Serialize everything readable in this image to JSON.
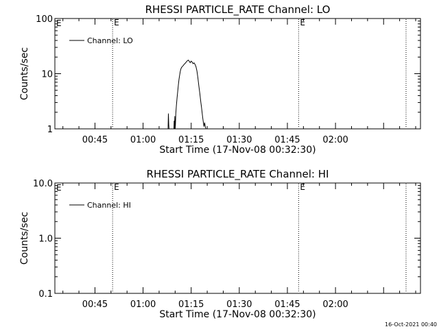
{
  "footer_timestamp": "16-Oct-2021 00:40",
  "chart_data": [
    {
      "type": "line",
      "title": "RHESSI PARTICLE_RATE Channel: LO",
      "xlabel": "Start Time (17-Nov-08 00:32:30)",
      "ylabel": "Counts/sec",
      "yscale": "log",
      "ylim": [
        1,
        100
      ],
      "yticks": [
        {
          "value": 1,
          "label": "1"
        },
        {
          "value": 10,
          "label": "10"
        },
        {
          "value": 100,
          "label": "100"
        }
      ],
      "xlim_minutes": [
        32.5,
        146.5
      ],
      "xticks": [
        {
          "minute": 45,
          "label": "00:45"
        },
        {
          "minute": 60,
          "label": "01:00"
        },
        {
          "minute": 75,
          "label": "01:15"
        },
        {
          "minute": 90,
          "label": "01:30"
        },
        {
          "minute": 105,
          "label": "01:45"
        },
        {
          "minute": 120,
          "label": "02:00"
        }
      ],
      "event_markers": [
        {
          "minute": 50.5,
          "label": "E"
        },
        {
          "minute": 108.5,
          "label": "E"
        },
        {
          "minute": 142.0,
          "label": ""
        }
      ],
      "legend": {
        "entries": [
          "Channel: LO"
        ],
        "location": "top-left"
      },
      "series": [
        {
          "name": "Channel: LO",
          "x": [
            67.8,
            67.9,
            68.0,
            68.1,
            69.6,
            69.7,
            69.8,
            69.9,
            70.0,
            70.1,
            70.2,
            70.4,
            70.6,
            70.8,
            71.0,
            71.2,
            71.4,
            71.6,
            71.8,
            72.0,
            72.3,
            72.6,
            72.9,
            73.2,
            73.5,
            73.8,
            74.1,
            74.4,
            74.7,
            75.0,
            75.3,
            75.6,
            75.9,
            76.2,
            76.5,
            76.8,
            77.1,
            77.4,
            77.7,
            78.0,
            78.2,
            78.4,
            78.6,
            78.8,
            79.0,
            79.2,
            79.4,
            79.6
          ],
          "y": [
            1,
            1.9,
            1.2,
            1,
            1,
            1.4,
            1,
            1.7,
            1,
            1.2,
            1.9,
            2.7,
            3.6,
            4.8,
            6.2,
            7.8,
            9.4,
            11.0,
            12.2,
            13.0,
            13.6,
            14.2,
            15.0,
            15.6,
            16.4,
            17.1,
            17.6,
            16.8,
            15.8,
            16.9,
            16.2,
            15.2,
            15.7,
            14.8,
            13.4,
            11.2,
            8.4,
            6.0,
            4.4,
            3.1,
            2.5,
            2.0,
            1.6,
            1.3,
            1.1,
            1.3,
            1.1,
            1
          ]
        }
      ]
    },
    {
      "type": "line",
      "title": "RHESSI PARTICLE_RATE Channel: HI",
      "xlabel": "Start Time (17-Nov-08 00:32:30)",
      "ylabel": "Counts/sec",
      "yscale": "log",
      "ylim": [
        0.1,
        10
      ],
      "yticks": [
        {
          "value": 0.1,
          "label": "0.1"
        },
        {
          "value": 1,
          "label": "1.0"
        },
        {
          "value": 10,
          "label": "10.0"
        }
      ],
      "xlim_minutes": [
        32.5,
        146.5
      ],
      "xticks": [
        {
          "minute": 45,
          "label": "00:45"
        },
        {
          "minute": 60,
          "label": "01:00"
        },
        {
          "minute": 75,
          "label": "01:15"
        },
        {
          "minute": 90,
          "label": "01:30"
        },
        {
          "minute": 105,
          "label": "01:45"
        },
        {
          "minute": 120,
          "label": "02:00"
        }
      ],
      "event_markers": [
        {
          "minute": 50.5,
          "label": "E"
        },
        {
          "minute": 108.5,
          "label": "E"
        },
        {
          "minute": 142.0,
          "label": ""
        }
      ],
      "legend": {
        "entries": [
          "Channel: HI"
        ],
        "location": "top-left"
      },
      "series": [
        {
          "name": "Channel: HI",
          "x": [],
          "y": []
        }
      ]
    }
  ]
}
